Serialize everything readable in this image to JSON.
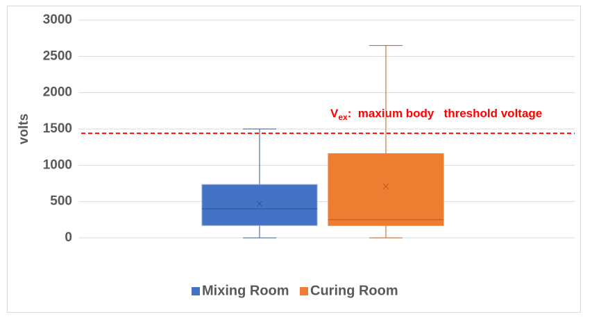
{
  "chart_data": {
    "type": "box",
    "y_label": "volts",
    "ylim": [
      0,
      3000
    ],
    "yticks": [
      0,
      500,
      1000,
      1500,
      2000,
      2500,
      3000
    ],
    "grid": true,
    "series": [
      {
        "name": "Mixing Room",
        "color": "#4472c4",
        "min": 0,
        "q1": 170,
        "median": 400,
        "q3": 735,
        "max": 1500,
        "mean": 470
      },
      {
        "name": "Curing Room",
        "color": "#ed7d31",
        "min": 0,
        "q1": 170,
        "median": 250,
        "q3": 1160,
        "max": 2650,
        "mean": 710
      }
    ],
    "threshold": {
      "value": 1440,
      "color": "#ff0000",
      "symbol": "V",
      "subscript": "ex",
      "text": ":  maxium body   threshold voltage"
    },
    "legend": "bottom"
  }
}
